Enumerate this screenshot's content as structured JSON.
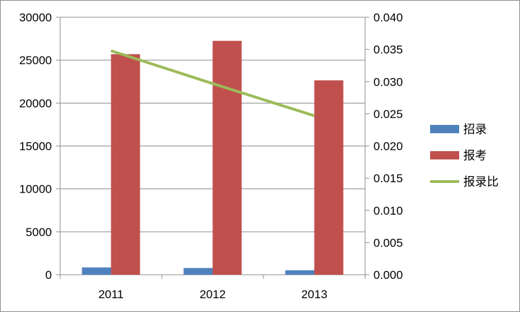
{
  "chart_data": {
    "type": "bar",
    "categories": [
      "2011",
      "2012",
      "2013"
    ],
    "series": [
      {
        "name": "招录",
        "type": "bar",
        "axis": "left",
        "color": "#4f81bd",
        "values": [
          850,
          780,
          520
        ]
      },
      {
        "name": "报考",
        "type": "bar",
        "axis": "left",
        "color": "#c0504d",
        "values": [
          25700,
          27250,
          22650
        ]
      },
      {
        "name": "报录比",
        "type": "line",
        "axis": "right",
        "color": "#9bbb59",
        "values": [
          0.0348,
          0.0297,
          0.0247
        ]
      }
    ],
    "yaxis_left": {
      "min": 0,
      "max": 30000,
      "ticks": [
        "0",
        "5000",
        "10000",
        "15000",
        "20000",
        "25000",
        "30000"
      ]
    },
    "yaxis_right": {
      "min": 0,
      "max": 0.04,
      "ticks": [
        "0.000",
        "0.005",
        "0.010",
        "0.015",
        "0.020",
        "0.025",
        "0.030",
        "0.035",
        "0.040"
      ]
    },
    "grid": true,
    "legend": {
      "position": "right",
      "items": [
        "招录",
        "报考",
        "报录比"
      ]
    },
    "title": "",
    "xlabel": "",
    "ylabel": ""
  }
}
